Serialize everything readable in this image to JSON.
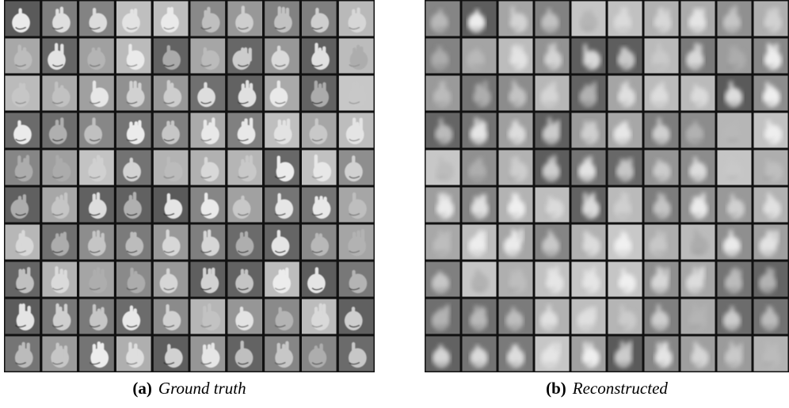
{
  "figure": {
    "panels": [
      {
        "label": "(a)",
        "caption": "Ground truth"
      },
      {
        "label": "(b)",
        "caption": "Reconstructed"
      }
    ]
  }
}
